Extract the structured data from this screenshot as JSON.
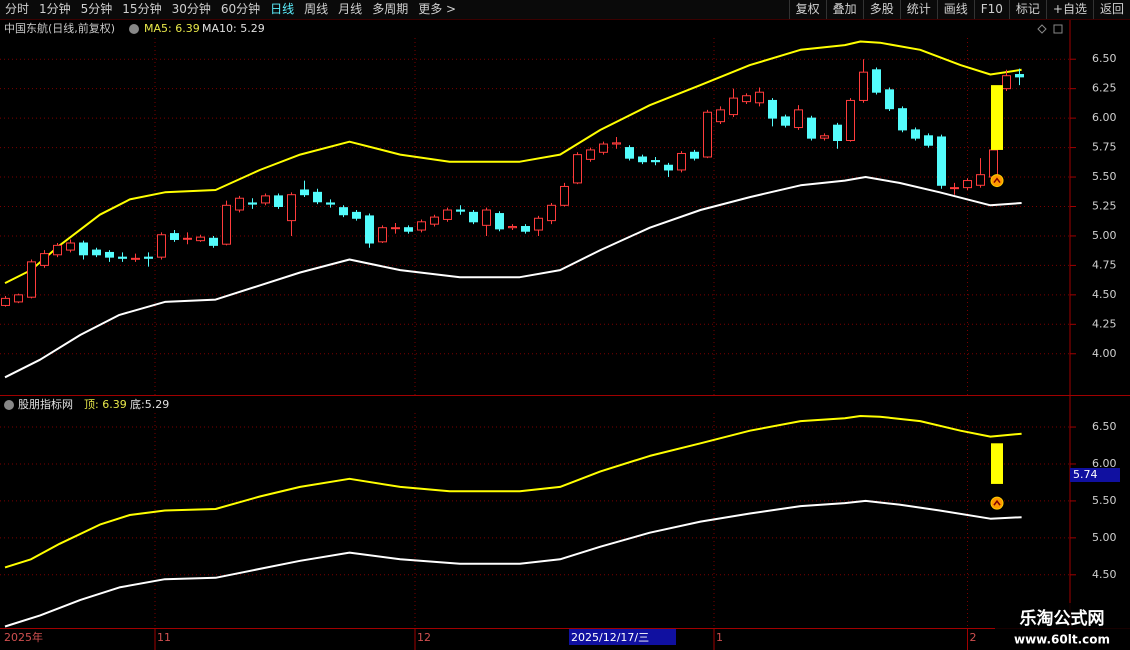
{
  "toolbar": {
    "left": [
      "分时",
      "1分钟",
      "5分钟",
      "15分钟",
      "30分钟",
      "60分钟",
      "日线",
      "周线",
      "月线",
      "多周期",
      "更多 >"
    ],
    "active": 6,
    "right": [
      "复权",
      "叠加",
      "多股",
      "统计",
      "画线",
      "F10",
      "标记",
      "+自选",
      "返回"
    ]
  },
  "main_chart": {
    "type": "candlestick",
    "title": "中国东航(日线,前复权)",
    "legend": [
      "MA5: 6.39",
      "MA10: 5.29"
    ],
    "ylim": [
      3.65,
      6.68
    ],
    "yticks": [
      {
        "value": 6.5,
        "label": "6.50"
      },
      {
        "value": 6.25,
        "label": "6.25"
      },
      {
        "value": 6.0,
        "label": "6.00"
      },
      {
        "value": 5.75,
        "label": "5.75"
      },
      {
        "value": 5.5,
        "label": "5.50"
      },
      {
        "value": 5.25,
        "label": "5.25"
      },
      {
        "value": 5.0,
        "label": "5.00"
      },
      {
        "value": 4.75,
        "label": "4.75"
      },
      {
        "value": 4.5,
        "label": "4.50"
      },
      {
        "value": 4.25,
        "label": "4.25"
      },
      {
        "value": 4.0,
        "label": "4.00"
      }
    ],
    "candles": {
      "open": [
        4.41,
        4.44,
        4.48,
        4.75,
        4.84,
        4.88,
        4.94,
        4.88,
        4.86,
        4.82,
        4.81,
        4.82,
        4.82,
        5.02,
        4.98,
        4.96,
        4.98,
        4.93,
        5.22,
        5.28,
        5.28,
        5.34,
        5.13,
        5.39,
        5.37,
        5.28,
        5.24,
        5.2,
        5.17,
        4.95,
        5.07,
        5.07,
        5.05,
        5.1,
        5.14,
        5.22,
        5.2,
        5.09,
        5.19,
        5.07,
        5.08,
        5.05,
        5.13,
        5.26,
        5.45,
        5.65,
        5.71,
        5.78,
        5.75,
        5.67,
        5.64,
        5.6,
        5.56,
        5.71,
        5.67,
        5.97,
        6.03,
        6.14,
        6.13,
        6.15,
        6.01,
        5.92,
        6.0,
        5.83,
        5.94,
        5.81,
        6.15,
        6.41,
        6.24,
        6.08,
        5.9,
        5.85,
        5.84,
        5.41,
        5.41,
        5.43,
        5.5,
        6.25,
        6.37
      ],
      "close": [
        4.47,
        4.5,
        4.78,
        4.85,
        4.92,
        4.94,
        4.84,
        4.84,
        4.82,
        4.81,
        4.81,
        4.81,
        5.01,
        4.97,
        4.98,
        4.99,
        4.92,
        5.26,
        5.32,
        5.27,
        5.34,
        5.25,
        5.35,
        5.35,
        5.29,
        5.27,
        5.18,
        5.15,
        4.94,
        5.07,
        5.07,
        5.04,
        5.12,
        5.16,
        5.22,
        5.21,
        5.12,
        5.22,
        5.06,
        5.08,
        5.04,
        5.15,
        5.26,
        5.42,
        5.69,
        5.73,
        5.78,
        5.79,
        5.66,
        5.63,
        5.63,
        5.56,
        5.7,
        5.66,
        6.05,
        6.07,
        6.17,
        6.19,
        6.22,
        6.0,
        5.94,
        6.07,
        5.83,
        5.85,
        5.81,
        6.15,
        6.39,
        6.22,
        6.08,
        5.9,
        5.83,
        5.77,
        5.43,
        5.41,
        5.47,
        5.52,
        5.73,
        6.36,
        6.35
      ],
      "high": [
        4.49,
        4.51,
        4.8,
        4.88,
        4.94,
        4.97,
        4.96,
        4.9,
        4.88,
        4.86,
        4.85,
        4.86,
        5.03,
        5.05,
        5.03,
        5.01,
        5.0,
        5.3,
        5.34,
        5.32,
        5.36,
        5.36,
        5.37,
        5.47,
        5.4,
        5.31,
        5.26,
        5.22,
        5.19,
        5.09,
        5.11,
        5.09,
        5.14,
        5.18,
        5.24,
        5.26,
        5.22,
        5.24,
        5.21,
        5.1,
        5.1,
        5.17,
        5.28,
        5.45,
        5.71,
        5.75,
        5.8,
        5.84,
        5.77,
        5.69,
        5.67,
        5.62,
        5.72,
        5.73,
        6.07,
        6.1,
        6.25,
        6.21,
        6.26,
        6.17,
        6.03,
        6.11,
        6.02,
        5.87,
        5.96,
        6.17,
        6.5,
        6.43,
        6.26,
        6.1,
        5.92,
        5.87,
        5.86,
        5.45,
        5.49,
        5.66,
        5.75,
        6.41,
        6.42
      ],
      "low": [
        4.4,
        4.43,
        4.47,
        4.73,
        4.82,
        4.86,
        4.8,
        4.82,
        4.78,
        4.78,
        4.78,
        4.74,
        4.8,
        4.95,
        4.93,
        4.95,
        4.9,
        4.92,
        5.2,
        5.23,
        5.26,
        5.23,
        5.0,
        5.33,
        5.27,
        5.24,
        5.16,
        5.13,
        4.9,
        4.94,
        5.02,
        5.02,
        5.03,
        5.08,
        5.12,
        5.18,
        5.1,
        5.0,
        5.04,
        5.05,
        5.02,
        5.0,
        5.1,
        5.25,
        5.44,
        5.63,
        5.69,
        5.74,
        5.64,
        5.61,
        5.6,
        5.5,
        5.54,
        5.64,
        5.66,
        5.95,
        6.01,
        6.12,
        6.1,
        5.93,
        5.92,
        5.9,
        5.81,
        5.81,
        5.74,
        5.8,
        6.13,
        6.2,
        6.06,
        5.88,
        5.81,
        5.75,
        5.4,
        5.35,
        5.39,
        5.41,
        5.48,
        6.23,
        6.28
      ]
    },
    "up_color": "#ff3c3c",
    "down_color": "#54fcfc",
    "bands": [
      {
        "color": "#ffff00",
        "x": [
          0,
          2,
          4.2,
          7.3,
          9.6,
          12.3,
          16.2,
          19.6,
          22.7,
          26.5,
          30.4,
          34.2,
          39.6,
          42.7,
          45.8,
          49.6,
          53.5,
          57.3,
          61.2,
          64.6,
          65.8,
          67.3,
          70.4,
          73.5,
          75.8,
          78.2
        ],
        "values": [
          4.6,
          4.71,
          4.92,
          5.18,
          5.31,
          5.37,
          5.39,
          5.56,
          5.69,
          5.8,
          5.69,
          5.63,
          5.63,
          5.69,
          5.9,
          6.11,
          6.28,
          6.45,
          6.58,
          6.62,
          6.65,
          6.64,
          6.58,
          6.45,
          6.37,
          6.41
        ]
      },
      {
        "color": "#ffffff",
        "x": [
          0,
          2.7,
          5.8,
          8.8,
          12.3,
          16.2,
          19.6,
          22.7,
          26.5,
          30.4,
          35,
          39.6,
          42.7,
          45.8,
          49.6,
          53.5,
          57.3,
          61.2,
          64.6,
          66.2,
          68.8,
          71.9,
          75.8,
          78.2
        ],
        "values": [
          3.8,
          3.95,
          4.16,
          4.33,
          4.44,
          4.46,
          4.58,
          4.69,
          4.8,
          4.71,
          4.65,
          4.65,
          4.71,
          4.88,
          5.07,
          5.22,
          5.33,
          5.43,
          5.47,
          5.5,
          5.45,
          5.37,
          5.26,
          5.28
        ]
      }
    ],
    "signal": {
      "index": 77,
      "from": 5.73,
      "to": 6.28,
      "arrow": 5.47,
      "color": "#ffff00"
    }
  },
  "indicator_chart": {
    "title": "股朋指标网",
    "legend": [
      "顶: 6.39",
      "底:5.29"
    ],
    "cursor_label": "5.74",
    "ylim": [
      3.78,
      6.69
    ],
    "yticks": [
      {
        "value": 6.5,
        "label": "6.50"
      },
      {
        "value": 6.0,
        "label": "6.00"
      },
      {
        "value": 5.5,
        "label": "5.50"
      },
      {
        "value": 5.0,
        "label": "5.00"
      },
      {
        "value": 4.5,
        "label": "4.50"
      }
    ]
  },
  "time_axis": {
    "labels": [
      {
        "text": "2025年",
        "index": 0
      },
      {
        "text": "11",
        "index": 12
      },
      {
        "text": "12",
        "index": 32
      },
      {
        "text": "1",
        "index": 55
      },
      {
        "text": "2",
        "index": 74.5
      }
    ],
    "highlight": {
      "text": "2025/12/17/三",
      "index": 43
    }
  },
  "watermark": {
    "title": "乐淘公式网",
    "url": "www.60lt.com"
  }
}
